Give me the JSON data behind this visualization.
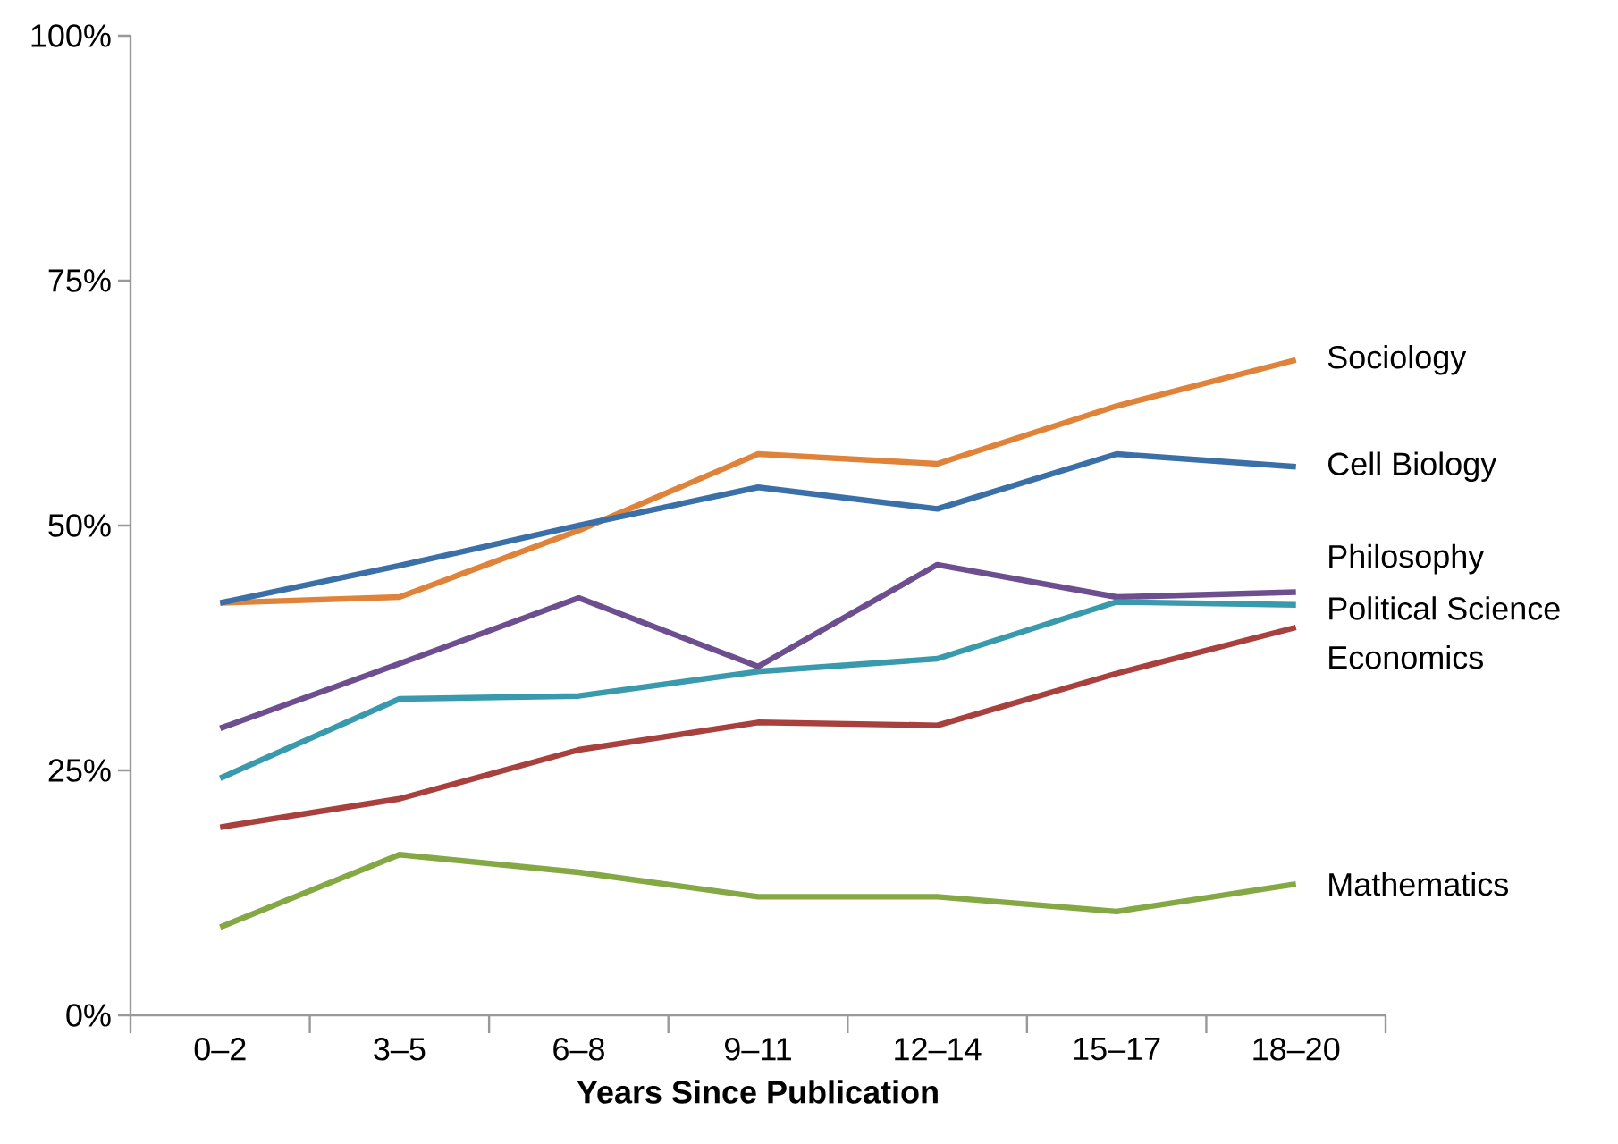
{
  "chart_data": {
    "type": "line",
    "xlabel": "Years Since Publication",
    "categories": [
      "0–2",
      "3–5",
      "6–8",
      "9–11",
      "12–14",
      "15–17",
      "18–20"
    ],
    "ylim": [
      0,
      100
    ],
    "yticks": [
      {
        "value": 0,
        "label": "0%"
      },
      {
        "value": 25,
        "label": "25%"
      },
      {
        "value": 50,
        "label": "50%"
      },
      {
        "value": 75,
        "label": "75%"
      },
      {
        "value": 100,
        "label": "100%"
      }
    ],
    "grid": false,
    "legend": false,
    "marker": "none",
    "line_style": "solid",
    "series": [
      {
        "name": "Sociology",
        "color": "#e0833a",
        "values": [
          42.1,
          42.7,
          49.5,
          57.3,
          56.3,
          62.2,
          66.9
        ]
      },
      {
        "name": "Cell Biology",
        "color": "#3a6fa8",
        "values": [
          42.1,
          45.9,
          50.0,
          53.9,
          51.7,
          57.3,
          56.0
        ]
      },
      {
        "name": "Philosophy",
        "color": "#6d4f90",
        "values": [
          29.3,
          35.9,
          42.6,
          35.6,
          46.0,
          42.7,
          43.2
        ]
      },
      {
        "name": "Political Science",
        "color": "#3a9aad",
        "values": [
          24.2,
          32.3,
          32.6,
          35.1,
          36.4,
          42.2,
          41.9
        ]
      },
      {
        "name": "Economics",
        "color": "#a8403d",
        "values": [
          19.2,
          22.1,
          27.1,
          29.9,
          29.6,
          34.9,
          39.6
        ]
      },
      {
        "name": "Mathematics",
        "color": "#84a844",
        "values": [
          9.0,
          16.4,
          14.6,
          12.1,
          12.1,
          10.6,
          13.4
        ]
      }
    ]
  }
}
